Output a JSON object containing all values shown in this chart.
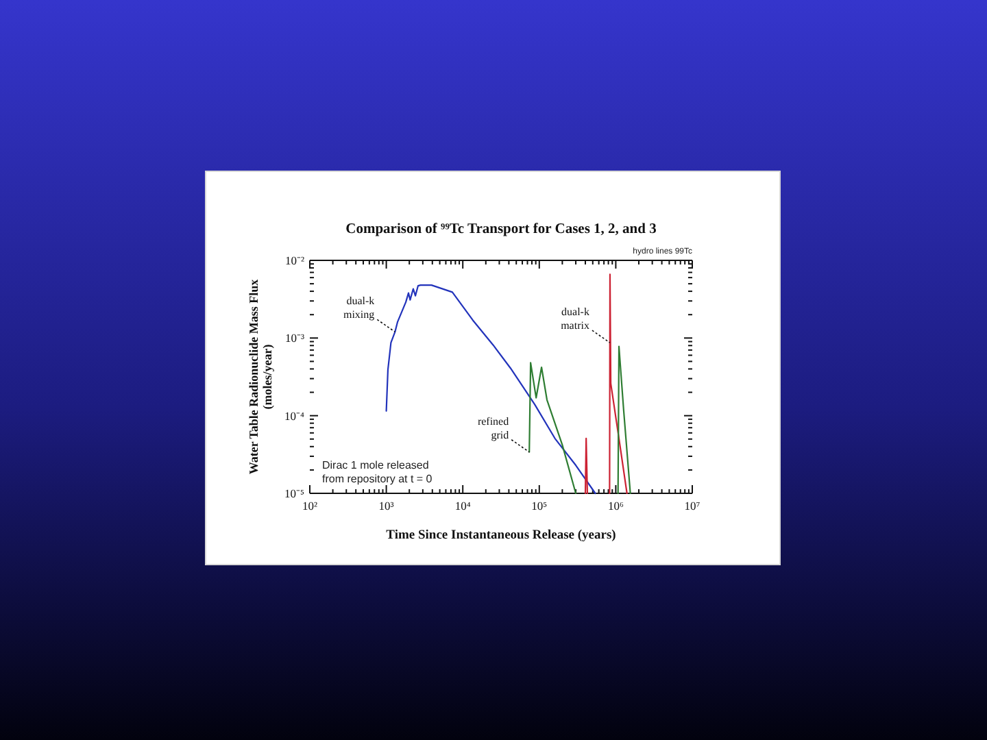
{
  "chart_data": {
    "type": "line",
    "title": "Comparison of ⁹⁹Tc Transport for Cases 1, 2, and 3",
    "xlabel": "Time Since Instantaneous Release (years)",
    "ylabel": "Water Table Radionuclide Mass Flux (moles/year)",
    "log": "xy",
    "xlim": [
      100,
      10000000
    ],
    "ylim": [
      1e-05,
      0.01
    ],
    "xticks": [
      {
        "value": 100,
        "label": "10²"
      },
      {
        "value": 200,
        "label": null
      },
      {
        "value": 300,
        "label": null
      },
      {
        "value": 400,
        "label": null
      },
      {
        "value": 500,
        "label": null
      },
      {
        "value": 600,
        "label": null
      },
      {
        "value": 700,
        "label": null
      },
      {
        "value": 800,
        "label": null
      },
      {
        "value": 900,
        "label": null
      },
      {
        "value": 1000,
        "label": "10³"
      },
      {
        "value": 2000,
        "label": null
      },
      {
        "value": 3000,
        "label": null
      },
      {
        "value": 4000,
        "label": null
      },
      {
        "value": 5000,
        "label": null
      },
      {
        "value": 6000,
        "label": null
      },
      {
        "value": 7000,
        "label": null
      },
      {
        "value": 8000,
        "label": null
      },
      {
        "value": 9000,
        "label": null
      },
      {
        "value": 10000,
        "label": "10⁴"
      },
      {
        "value": 20000,
        "label": null
      },
      {
        "value": 30000,
        "label": null
      },
      {
        "value": 40000,
        "label": null
      },
      {
        "value": 50000,
        "label": null
      },
      {
        "value": 60000,
        "label": null
      },
      {
        "value": 70000,
        "label": null
      },
      {
        "value": 80000,
        "label": null
      },
      {
        "value": 90000,
        "label": null
      },
      {
        "value": 100000,
        "label": "10⁵"
      },
      {
        "value": 200000,
        "label": null
      },
      {
        "value": 300000,
        "label": null
      },
      {
        "value": 400000,
        "label": null
      },
      {
        "value": 500000,
        "label": null
      },
      {
        "value": 600000,
        "label": null
      },
      {
        "value": 700000,
        "label": null
      },
      {
        "value": 800000,
        "label": null
      },
      {
        "value": 900000,
        "label": null
      },
      {
        "value": 1000000,
        "label": "10⁶"
      },
      {
        "value": 2000000,
        "label": null
      },
      {
        "value": 3000000,
        "label": null
      },
      {
        "value": 4000000,
        "label": null
      },
      {
        "value": 5000000,
        "label": null
      },
      {
        "value": 6000000,
        "label": null
      },
      {
        "value": 7000000,
        "label": null
      },
      {
        "value": 8000000,
        "label": null
      },
      {
        "value": 9000000,
        "label": null
      },
      {
        "value": 10000000,
        "label": "10⁷"
      }
    ],
    "yticks": [
      {
        "value": 1e-05,
        "label": "10⁻⁵"
      },
      {
        "value": 2e-05,
        "label": null
      },
      {
        "value": 3e-05,
        "label": null
      },
      {
        "value": 4e-05,
        "label": null
      },
      {
        "value": 5e-05,
        "label": null
      },
      {
        "value": 6e-05,
        "label": null
      },
      {
        "value": 7e-05,
        "label": null
      },
      {
        "value": 8e-05,
        "label": null
      },
      {
        "value": 9e-05,
        "label": null
      },
      {
        "value": 0.0001,
        "label": "10⁻⁴"
      },
      {
        "value": 0.0002,
        "label": null
      },
      {
        "value": 0.0003,
        "label": null
      },
      {
        "value": 0.0004,
        "label": null
      },
      {
        "value": 0.0005,
        "label": null
      },
      {
        "value": 0.0006,
        "label": null
      },
      {
        "value": 0.0007,
        "label": null
      },
      {
        "value": 0.0008,
        "label": null
      },
      {
        "value": 0.0009,
        "label": null
      },
      {
        "value": 0.001,
        "label": "10⁻³"
      },
      {
        "value": 0.002,
        "label": null
      },
      {
        "value": 0.003,
        "label": null
      },
      {
        "value": 0.004,
        "label": null
      },
      {
        "value": 0.005,
        "label": null
      },
      {
        "value": 0.006,
        "label": null
      },
      {
        "value": 0.007,
        "label": null
      },
      {
        "value": 0.008,
        "label": null
      },
      {
        "value": 0.009,
        "label": null
      },
      {
        "value": 0.01,
        "label": "10⁻²"
      }
    ],
    "series": [
      {
        "color": "#2233bb",
        "x": [
          1000,
          1050,
          1150,
          1300,
          1400,
          1800,
          1950,
          2050,
          2250,
          2400,
          2600,
          2800,
          3900,
          7300,
          13500,
          25000,
          42000,
          87000,
          160000,
          300000,
          540000
        ],
        "values": [
          0.000115,
          0.00039,
          0.00087,
          0.0012,
          0.0016,
          0.0029,
          0.0038,
          0.0031,
          0.0043,
          0.0035,
          0.0047,
          0.0048,
          0.0048,
          0.0039,
          0.0017,
          0.00081,
          0.00041,
          0.00014,
          5.1e-05,
          2.3e-05,
          1e-05
        ]
      },
      {
        "color": "#cc2233",
        "x": [
          400000,
          410000,
          425000,
          600000,
          830000,
          840000,
          860000,
          1100000,
          1400000
        ],
        "values": [
          1e-05,
          5.1e-05,
          1e-05,
          null,
          1e-05,
          0.0066,
          0.00026,
          5.1e-05,
          1e-05
        ]
      },
      {
        "color": "#2e7d32",
        "x": [
          74000,
          77000,
          91000,
          107000,
          126000,
          200000,
          300000,
          600000,
          1070000,
          1100000,
          1270000,
          1550000
        ],
        "values": [
          3.4e-05,
          0.00048,
          0.00017,
          0.00042,
          0.00016,
          4.2e-05,
          1e-05,
          null,
          1e-05,
          0.00078,
          0.000115,
          1e-05
        ]
      }
    ],
    "annotations": [
      "hydro lines 99Tc",
      {
        "text": "dual-k mixing",
        "x": 1300,
        "y": 0.0012
      },
      {
        "text": "dual-k matrix",
        "x": 840000,
        "y": 0.00087
      },
      {
        "text": "refined grid",
        "x": 74000,
        "y": 3.4e-05
      },
      "Dirac 1 mole released from repository at t = 0"
    ]
  }
}
